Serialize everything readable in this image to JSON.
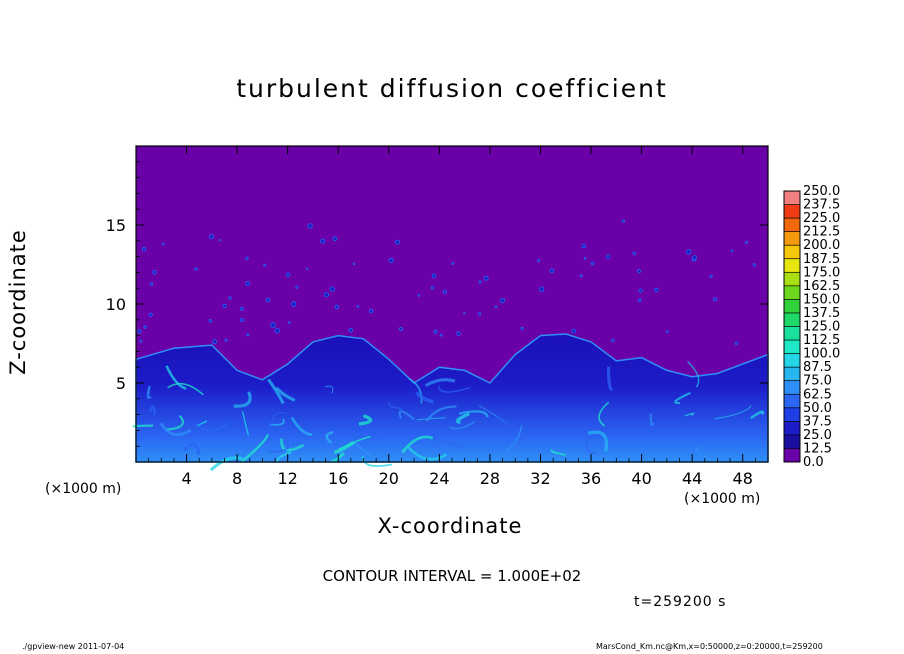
{
  "chart_data": {
    "type": "heatmap",
    "title": "turbulent diffusion coefficient",
    "xlabel": "X-coordinate",
    "ylabel": "Z-coordinate",
    "x_unit_label": "(×1000 m)",
    "x_unit_label_right": "(×1000 m)",
    "xlim": [
      0,
      50
    ],
    "ylim": [
      0,
      20
    ],
    "x_ticks": [
      4,
      8,
      12,
      16,
      20,
      24,
      28,
      32,
      36,
      40,
      44,
      48
    ],
    "y_ticks": [
      5,
      10,
      15
    ],
    "colorbar": {
      "levels": [
        "0.0",
        "12.5",
        "25.0",
        "37.5",
        "50.0",
        "62.5",
        "75.0",
        "87.5",
        "100.0",
        "112.5",
        "125.0",
        "137.5",
        "150.0",
        "162.5",
        "175.0",
        "187.5",
        "200.0",
        "212.5",
        "225.0",
        "237.5",
        "250.0"
      ],
      "colors": [
        "#6a00a8",
        "#1a0fa0",
        "#1c1cc8",
        "#1e3ee6",
        "#2a66f2",
        "#2f8ff6",
        "#27b6f0",
        "#22d6e8",
        "#1ee8c8",
        "#19e09a",
        "#1fd86a",
        "#2fd23a",
        "#6cd71e",
        "#a8de12",
        "#e6e60e",
        "#f5c70a",
        "#f59a0a",
        "#f26a0c",
        "#ee3c16",
        "#f08080"
      ]
    },
    "contour_interval": "CONTOUR INTERVAL = 1.000E+02",
    "boundary_layer": {
      "description_values_km": [
        [
          0,
          6.5
        ],
        [
          3,
          7.2
        ],
        [
          6,
          7.4
        ],
        [
          8,
          5.8
        ],
        [
          10,
          5.2
        ],
        [
          12,
          6.2
        ],
        [
          14,
          7.6
        ],
        [
          16,
          8.0
        ],
        [
          18,
          7.8
        ],
        [
          20,
          6.5
        ],
        [
          22,
          5.0
        ],
        [
          24,
          6.0
        ],
        [
          26,
          5.8
        ],
        [
          28,
          5.0
        ],
        [
          30,
          6.8
        ],
        [
          32,
          8.0
        ],
        [
          34,
          8.1
        ],
        [
          36,
          7.6
        ],
        [
          38,
          6.4
        ],
        [
          40,
          6.6
        ],
        [
          42,
          5.8
        ],
        [
          44,
          5.4
        ],
        [
          46,
          5.6
        ],
        [
          48,
          6.2
        ],
        [
          50,
          6.8
        ]
      ]
    }
  },
  "annotations": {
    "timestamp": "t=259200 s",
    "footer_left": "./gpview-new  2011-07-04",
    "footer_right": "MarsCond_Km.nc@Km,x=0:50000,z=0:20000,t=259200"
  }
}
